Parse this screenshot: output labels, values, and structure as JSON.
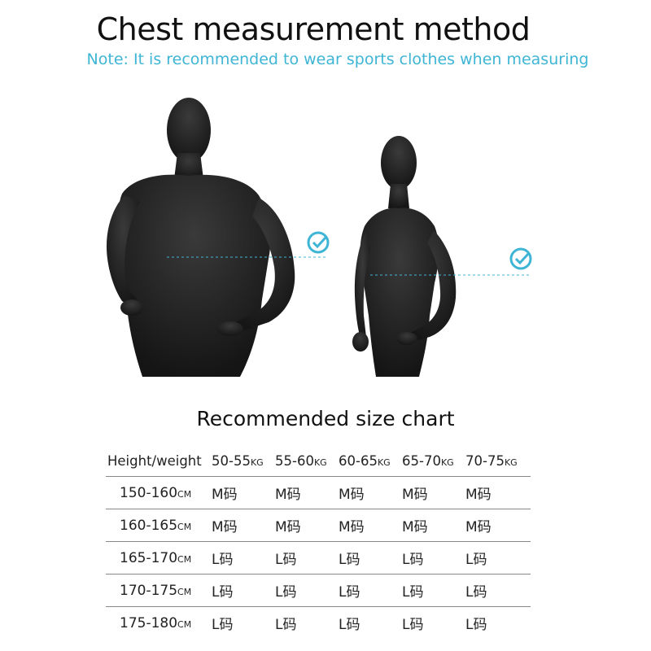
{
  "header": {
    "title": "Chest measurement method",
    "note": "Note: It is recommended to wear sports clothes when measuring"
  },
  "figure": {
    "check_color": "#3fb5d6",
    "mannequin_color": "#1b1b1b",
    "male_check_icon": "check-circle-icon",
    "female_check_icon": "check-circle-icon"
  },
  "size_chart": {
    "title": "Recommended size chart",
    "corner_label": "Height/weight",
    "weight_unit": "KG",
    "height_unit": "CM",
    "weights": [
      "50-55",
      "55-60",
      "60-65",
      "65-70",
      "70-75"
    ],
    "rows": [
      {
        "height": "150-160",
        "sizes": [
          "M码",
          "M码",
          "M码",
          "M码",
          "M码"
        ]
      },
      {
        "height": "160-165",
        "sizes": [
          "M码",
          "M码",
          "M码",
          "M码",
          "M码"
        ]
      },
      {
        "height": "165-170",
        "sizes": [
          "L码",
          "L码",
          "L码",
          "L码",
          "L码"
        ]
      },
      {
        "height": "170-175",
        "sizes": [
          "L码",
          "L码",
          "L码",
          "L码",
          "L码"
        ]
      },
      {
        "height": "175-180",
        "sizes": [
          "L码",
          "L码",
          "L码",
          "L码",
          "L码"
        ]
      }
    ]
  }
}
